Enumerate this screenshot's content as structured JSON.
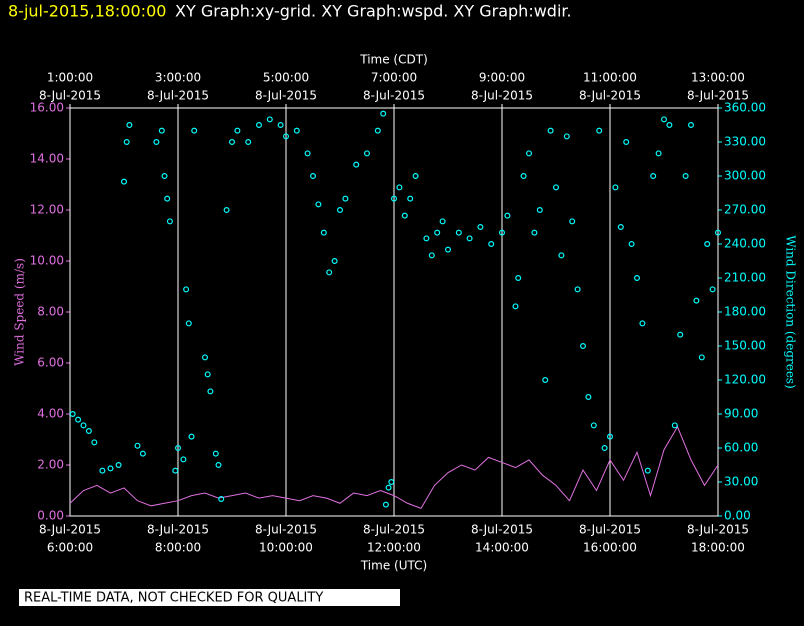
{
  "chart_data": {
    "type": "line-scatter",
    "timestamp": "8-jul-2015,18:00:00",
    "title": "XY Graph:xy-grid.  XY Graph:wspd.  XY Graph:wdir.",
    "xlabel": "Time (UTC)",
    "x2label": "Time (CDT)",
    "ylabel": "Wind Speed (m/s)",
    "y2label": "Wind Direction (degrees)",
    "note": "REAL-TIME DATA, NOT CHECKED FOR QUALITY",
    "xlim": [
      6,
      18
    ],
    "xticks": [
      {
        "value": 6,
        "label": "6:00:00"
      },
      {
        "value": 8,
        "label": "8:00:00"
      },
      {
        "value": 10,
        "label": "10:00:00"
      },
      {
        "value": 12,
        "label": "12:00:00"
      },
      {
        "value": 14,
        "label": "14:00:00"
      },
      {
        "value": 16,
        "label": "16:00:00"
      },
      {
        "value": 18,
        "label": "18:00:00"
      }
    ],
    "xtick_dates": [
      "8-Jul-2015",
      "8-Jul-2015",
      "8-Jul-2015",
      "8-Jul-2015",
      "8-Jul-2015",
      "8-Jul-2015",
      "8-Jul-2015"
    ],
    "x2ticks": [
      {
        "value": 6,
        "label": "1:00:00"
      },
      {
        "value": 8,
        "label": "3:00:00"
      },
      {
        "value": 10,
        "label": "5:00:00"
      },
      {
        "value": 12,
        "label": "7:00:00"
      },
      {
        "value": 14,
        "label": "9:00:00"
      },
      {
        "value": 16,
        "label": "11:00:00"
      },
      {
        "value": 18,
        "label": "13:00:00"
      }
    ],
    "x2tick_dates": [
      "8-Jul-2015",
      "8-Jul-2015",
      "8-Jul-2015",
      "8-Jul-2015",
      "8-Jul-2015",
      "8-Jul-2015",
      "8-Jul-2015"
    ],
    "ylim": [
      0,
      16
    ],
    "yticks": [
      {
        "value": 0,
        "label": "0.00"
      },
      {
        "value": 2,
        "label": "2.00"
      },
      {
        "value": 4,
        "label": "4.00"
      },
      {
        "value": 6,
        "label": "6.00"
      },
      {
        "value": 8,
        "label": "8.00"
      },
      {
        "value": 10,
        "label": "10.00"
      },
      {
        "value": 12,
        "label": "12.00"
      },
      {
        "value": 14,
        "label": "14.00"
      },
      {
        "value": 16,
        "label": "16.00"
      }
    ],
    "y2lim": [
      0,
      360
    ],
    "y2ticks": [
      {
        "value": 0,
        "label": "0.00"
      },
      {
        "value": 30,
        "label": "30.00"
      },
      {
        "value": 60,
        "label": "60.00"
      },
      {
        "value": 90,
        "label": "90.00"
      },
      {
        "value": 120,
        "label": "120.00"
      },
      {
        "value": 150,
        "label": "150.00"
      },
      {
        "value": 180,
        "label": "180.00"
      },
      {
        "value": 210,
        "label": "210.00"
      },
      {
        "value": 240,
        "label": "240.00"
      },
      {
        "value": 270,
        "label": "270.00"
      },
      {
        "value": 300,
        "label": "300.00"
      },
      {
        "value": 330,
        "label": "330.00"
      },
      {
        "value": 360,
        "label": "360.00"
      }
    ],
    "series": [
      {
        "type": "line",
        "axis": "y",
        "color": "#e070e0",
        "x": [
          6.0,
          6.25,
          6.5,
          6.75,
          7.0,
          7.25,
          7.5,
          7.75,
          8.0,
          8.25,
          8.5,
          8.75,
          9.0,
          9.25,
          9.5,
          9.75,
          10.0,
          10.25,
          10.5,
          10.75,
          11.0,
          11.25,
          11.5,
          11.75,
          12.0,
          12.25,
          12.5,
          12.75,
          13.0,
          13.25,
          13.5,
          13.75,
          14.0,
          14.25,
          14.5,
          14.75,
          15.0,
          15.25,
          15.5,
          15.75,
          16.0,
          16.25,
          16.5,
          16.75,
          17.0,
          17.25,
          17.5,
          17.75,
          18.0
        ],
        "values": [
          0.5,
          1.0,
          1.2,
          0.9,
          1.1,
          0.6,
          0.4,
          0.5,
          0.6,
          0.8,
          0.9,
          0.7,
          0.8,
          0.9,
          0.7,
          0.8,
          0.7,
          0.6,
          0.8,
          0.7,
          0.5,
          0.9,
          0.8,
          1.0,
          0.8,
          0.5,
          0.3,
          1.2,
          1.7,
          2.0,
          1.8,
          2.3,
          2.1,
          1.9,
          2.2,
          1.6,
          1.2,
          0.6,
          1.8,
          1.0,
          2.2,
          1.4,
          2.5,
          0.8,
          2.6,
          3.5,
          2.2,
          1.2,
          2.0
        ]
      },
      {
        "type": "scatter",
        "axis": "y2",
        "color": "#00ffff",
        "x": [
          6.05,
          6.15,
          6.25,
          6.35,
          6.45,
          6.6,
          6.75,
          6.9,
          7.0,
          7.05,
          7.1,
          7.25,
          7.35,
          7.6,
          7.7,
          7.75,
          7.8,
          7.85,
          7.95,
          8.0,
          8.1,
          8.15,
          8.2,
          8.25,
          8.3,
          8.5,
          8.55,
          8.6,
          8.7,
          8.75,
          8.8,
          8.9,
          9.0,
          9.1,
          9.3,
          9.5,
          9.7,
          9.9,
          10.0,
          10.2,
          10.4,
          10.5,
          10.6,
          10.7,
          10.8,
          10.9,
          11.0,
          11.1,
          11.3,
          11.5,
          11.7,
          11.8,
          11.85,
          11.9,
          11.95,
          12.0,
          12.1,
          12.2,
          12.3,
          12.4,
          12.6,
          12.7,
          12.8,
          12.9,
          13.0,
          13.2,
          13.4,
          13.6,
          13.8,
          14.0,
          14.1,
          14.25,
          14.3,
          14.4,
          14.5,
          14.6,
          14.7,
          14.8,
          14.9,
          15.0,
          15.1,
          15.2,
          15.3,
          15.4,
          15.5,
          15.6,
          15.7,
          15.8,
          15.9,
          16.0,
          16.1,
          16.2,
          16.3,
          16.4,
          16.5,
          16.6,
          16.7,
          16.8,
          16.9,
          17.0,
          17.1,
          17.2,
          17.3,
          17.4,
          17.5,
          17.6,
          17.7,
          17.8,
          17.9,
          18.0
        ],
        "values": [
          90,
          85,
          80,
          75,
          65,
          40,
          42,
          45,
          295,
          330,
          345,
          62,
          55,
          330,
          340,
          300,
          280,
          260,
          40,
          60,
          50,
          200,
          170,
          70,
          340,
          140,
          125,
          110,
          55,
          45,
          15,
          270,
          330,
          340,
          330,
          345,
          350,
          345,
          335,
          340,
          320,
          300,
          275,
          250,
          215,
          225,
          270,
          280,
          310,
          320,
          340,
          355,
          10,
          25,
          30,
          280,
          290,
          265,
          280,
          300,
          245,
          230,
          250,
          260,
          235,
          250,
          245,
          255,
          240,
          250,
          265,
          185,
          210,
          300,
          320,
          250,
          270,
          120,
          340,
          290,
          230,
          335,
          260,
          200,
          150,
          105,
          80,
          340,
          60,
          70,
          290,
          255,
          330,
          240,
          210,
          170,
          40,
          300,
          320,
          350,
          345,
          80,
          160,
          300,
          345,
          190,
          140,
          240,
          200,
          250
        ]
      }
    ]
  }
}
